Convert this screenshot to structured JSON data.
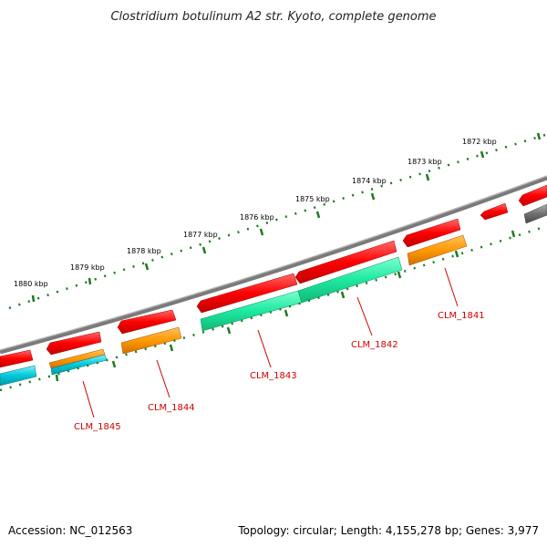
{
  "title": "Clostridium botulinum A2 str. Kyoto, complete genome",
  "footer": {
    "accession": "Accession: NC_012563",
    "topology": "Topology: circular; Length: 4,155,278 bp; Genes: 3,977"
  },
  "colors": {
    "backbone": "#808080",
    "tick": "#1f7a1f",
    "gene_red": "#ff0000",
    "cds_teal": "#1de9a0",
    "cds_orange": "#ff9900",
    "cds_cyan": "#00c8d8",
    "cds_gray": "#707070",
    "label_red": "#cc0000"
  },
  "kbp_ticks": [
    "1880 kbp",
    "1879 kbp",
    "1878 kbp",
    "1877 kbp",
    "1876 kbp",
    "1875 kbp",
    "1874 kbp",
    "1873 kbp",
    "1872 kbp"
  ],
  "genes": [
    "CLM_1845",
    "CLM_1844",
    "CLM_1843",
    "CLM_1842",
    "CLM_1841"
  ]
}
